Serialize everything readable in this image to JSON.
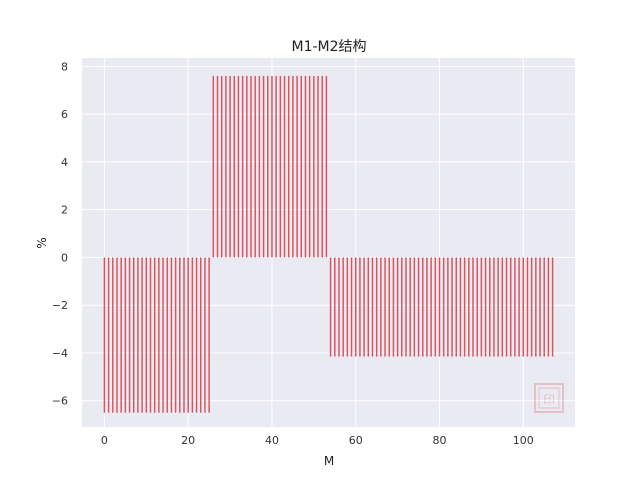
{
  "chart_data": {
    "type": "bar",
    "title": "M1-M2结构",
    "xlabel": "M",
    "ylabel": "%",
    "xlim": [
      -5.35,
      112.35
    ],
    "ylim": [
      -7.1,
      8.35
    ],
    "x_ticks": [
      0,
      20,
      40,
      60,
      80,
      100
    ],
    "y_ticks": [
      -6,
      -4,
      -2,
      0,
      2,
      4,
      6,
      8
    ],
    "x_tick_labels": [
      "0",
      "20",
      "40",
      "60",
      "80",
      "100"
    ],
    "y_tick_labels": [
      "−6",
      "−4",
      "−2",
      "0",
      "2",
      "4",
      "6",
      "8"
    ],
    "grid": true,
    "bar_color": "#d9545e",
    "background_color": "#eaeaf2",
    "grid_color": "#ffffff",
    "bar_width": 0.35,
    "segments": [
      {
        "x_start": 0,
        "x_end": 25,
        "value": -6.5
      },
      {
        "x_start": 26,
        "x_end": 53,
        "value": 7.6
      },
      {
        "x_start": 54,
        "x_end": 107,
        "value": -4.15
      }
    ]
  },
  "watermark": {
    "text": "印"
  }
}
